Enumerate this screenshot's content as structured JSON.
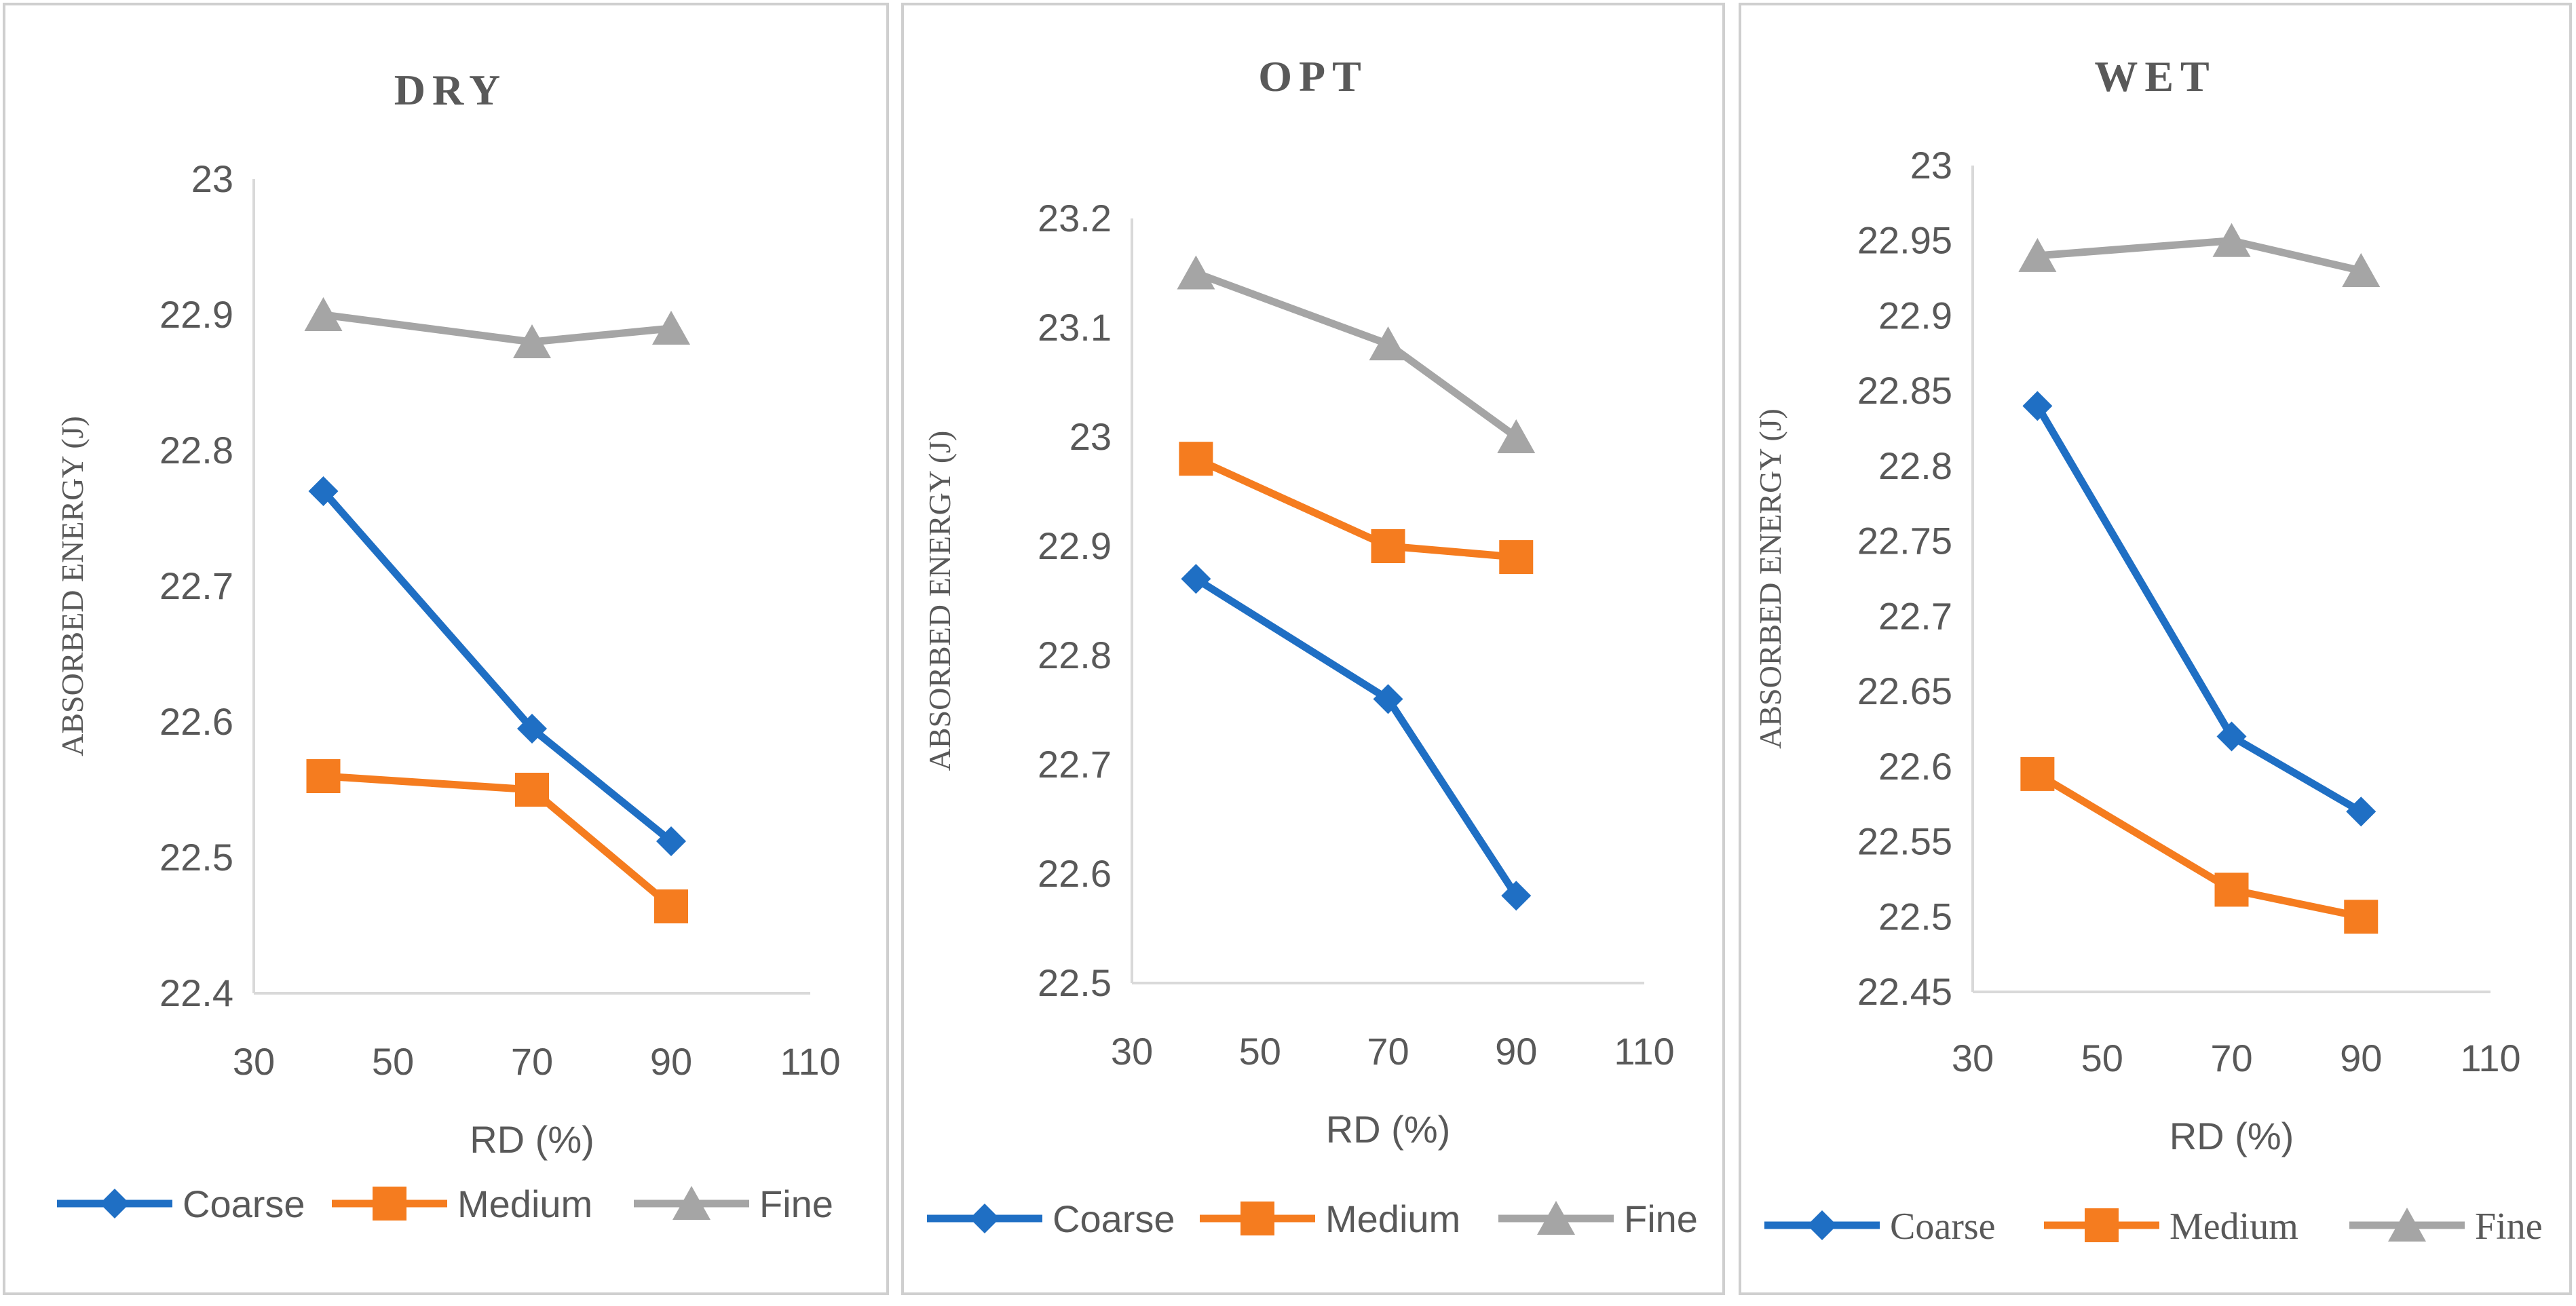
{
  "chart_data": [
    {
      "type": "line",
      "title": "DRY",
      "xlabel": "RD (%)",
      "ylabel": "ABSORBED ENERGY (J)",
      "x": [
        40,
        70,
        90
      ],
      "xlim": [
        30,
        110
      ],
      "xticks": [
        "30",
        "50",
        "70",
        "90",
        "110"
      ],
      "ylim": [
        22.4,
        23.0
      ],
      "yticks": [
        "22.4",
        "22.5",
        "22.6",
        "22.7",
        "22.8",
        "22.9",
        "23"
      ],
      "series": [
        {
          "name": "Coarse",
          "values": [
            22.77,
            22.595,
            22.512
          ]
        },
        {
          "name": "Medium",
          "values": [
            22.56,
            22.55,
            22.464
          ]
        },
        {
          "name": "Fine",
          "values": [
            22.9,
            22.88,
            22.89
          ]
        }
      ]
    },
    {
      "type": "line",
      "title": "OPT",
      "xlabel": "RD (%)",
      "ylabel": "ABSORBED ENERGY (J)",
      "x": [
        40,
        70,
        90
      ],
      "xlim": [
        30,
        110
      ],
      "xticks": [
        "30",
        "50",
        "70",
        "90",
        "110"
      ],
      "ylim": [
        22.5,
        23.2
      ],
      "yticks": [
        "22.5",
        "22.6",
        "22.7",
        "22.8",
        "22.9",
        "23",
        "23.1",
        "23.2"
      ],
      "series": [
        {
          "name": "Coarse",
          "values": [
            22.87,
            22.76,
            22.58
          ]
        },
        {
          "name": "Medium",
          "values": [
            22.98,
            22.9,
            22.89
          ]
        },
        {
          "name": "Fine",
          "values": [
            23.15,
            23.085,
            23.0
          ]
        }
      ]
    },
    {
      "type": "line",
      "title": "WET",
      "xlabel": "RD (%)",
      "ylabel": "ABSORBED ENERGY (J)",
      "x": [
        40,
        70,
        90
      ],
      "xlim": [
        30,
        110
      ],
      "xticks": [
        "30",
        "50",
        "70",
        "90",
        "110"
      ],
      "ylim": [
        22.45,
        23.0
      ],
      "yticks": [
        "22.45",
        "22.5",
        "22.55",
        "22.6",
        "22.65",
        "22.7",
        "22.75",
        "22.8",
        "22.85",
        "22.9",
        "22.95",
        "23"
      ],
      "series": [
        {
          "name": "Coarse",
          "values": [
            22.84,
            22.62,
            22.57
          ]
        },
        {
          "name": "Medium",
          "values": [
            22.595,
            22.518,
            22.5
          ]
        },
        {
          "name": "Fine",
          "values": [
            22.94,
            22.95,
            22.93
          ]
        }
      ]
    }
  ],
  "colors": {
    "Coarse": "#1f6fc4",
    "Medium": "#f57c1f",
    "Fine": "#a5a5a5",
    "axis": "#d9d9d9",
    "text": "#595959"
  },
  "markers": {
    "Coarse": "diamond-icon",
    "Medium": "square-icon",
    "Fine": "triangle-icon"
  }
}
